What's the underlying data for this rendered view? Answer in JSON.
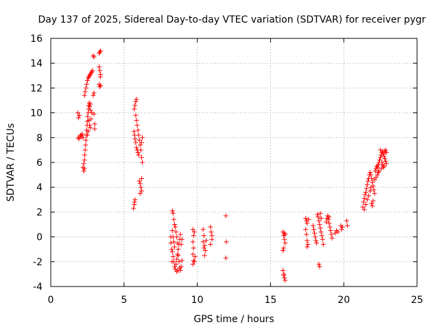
{
  "chart_data": {
    "type": "scatter",
    "title": "Day 137 of 2025, Sidereal Day-to-day VTEC variation (SDTVAR) for receiver pygr",
    "xlabel": "GPS time / hours",
    "ylabel": "SDTVAR / TECUs",
    "xlim": [
      0,
      25
    ],
    "ylim": [
      -4,
      16
    ],
    "xticks": [
      0,
      5,
      10,
      15,
      20,
      25
    ],
    "yticks": [
      -4,
      -2,
      0,
      2,
      4,
      6,
      8,
      10,
      12,
      14,
      16
    ],
    "grid": true,
    "marker": "+",
    "color": "#ff0000",
    "series": [
      {
        "name": "SDTVAR",
        "points": [
          [
            1.85,
            10.0
          ],
          [
            1.9,
            9.6
          ],
          [
            1.95,
            9.8
          ],
          [
            1.88,
            8.0
          ],
          [
            1.92,
            7.9
          ],
          [
            2.0,
            8.1
          ],
          [
            2.05,
            8.2
          ],
          [
            2.1,
            8.1
          ],
          [
            2.15,
            8.3
          ],
          [
            2.2,
            8.0
          ],
          [
            2.2,
            5.6
          ],
          [
            2.25,
            5.3
          ],
          [
            2.3,
            5.5
          ],
          [
            2.25,
            5.9
          ],
          [
            2.3,
            6.2
          ],
          [
            2.32,
            6.6
          ],
          [
            2.35,
            7.0
          ],
          [
            2.38,
            7.4
          ],
          [
            2.4,
            7.8
          ],
          [
            2.42,
            8.2
          ],
          [
            2.45,
            8.6
          ],
          [
            2.48,
            9.0
          ],
          [
            2.5,
            9.3
          ],
          [
            2.52,
            9.7
          ],
          [
            2.55,
            10.0
          ],
          [
            2.58,
            10.3
          ],
          [
            2.6,
            10.6
          ],
          [
            2.62,
            10.8
          ],
          [
            2.65,
            10.5
          ],
          [
            2.7,
            10.7
          ],
          [
            2.3,
            11.4
          ],
          [
            2.35,
            11.7
          ],
          [
            2.4,
            12.0
          ],
          [
            2.45,
            12.3
          ],
          [
            2.5,
            12.6
          ],
          [
            2.55,
            12.8
          ],
          [
            2.6,
            12.9
          ],
          [
            2.65,
            13.0
          ],
          [
            2.7,
            13.1
          ],
          [
            2.75,
            13.2
          ],
          [
            2.8,
            13.3
          ],
          [
            2.85,
            13.4
          ],
          [
            2.6,
            9.4
          ],
          [
            2.65,
            9.0
          ],
          [
            2.55,
            8.5
          ],
          [
            2.5,
            8.2
          ],
          [
            2.7,
            8.8
          ],
          [
            2.75,
            9.5
          ],
          [
            2.8,
            10.0
          ],
          [
            2.72,
            10.2
          ],
          [
            2.9,
            14.6
          ],
          [
            2.95,
            14.5
          ],
          [
            2.95,
            11.6
          ],
          [
            2.9,
            11.4
          ],
          [
            2.95,
            9.9
          ],
          [
            3.0,
            9.1
          ],
          [
            3.0,
            8.7
          ],
          [
            3.3,
            14.8
          ],
          [
            3.35,
            14.9
          ],
          [
            3.4,
            15.0
          ],
          [
            3.3,
            13.7
          ],
          [
            3.35,
            13.4
          ],
          [
            3.4,
            13.1
          ],
          [
            3.3,
            12.3
          ],
          [
            3.35,
            12.1
          ],
          [
            3.4,
            12.2
          ],
          [
            3.38,
            12.9
          ],
          [
            5.65,
            2.3
          ],
          [
            5.7,
            2.6
          ],
          [
            5.72,
            2.8
          ],
          [
            5.75,
            3.0
          ],
          [
            5.68,
            8.5
          ],
          [
            5.72,
            8.2
          ],
          [
            5.75,
            7.9
          ],
          [
            5.8,
            7.6
          ],
          [
            5.85,
            7.2
          ],
          [
            5.9,
            7.0
          ],
          [
            5.95,
            6.8
          ],
          [
            6.0,
            6.6
          ],
          [
            5.7,
            10.3
          ],
          [
            5.75,
            10.6
          ],
          [
            5.8,
            10.9
          ],
          [
            5.85,
            11.1
          ],
          [
            5.8,
            9.8
          ],
          [
            5.85,
            9.4
          ],
          [
            5.9,
            9.0
          ],
          [
            5.95,
            8.6
          ],
          [
            6.0,
            8.2
          ],
          [
            6.05,
            7.8
          ],
          [
            6.1,
            7.4
          ],
          [
            6.15,
            7.0
          ],
          [
            6.2,
            6.4
          ],
          [
            6.25,
            6.0
          ],
          [
            6.05,
            4.5
          ],
          [
            6.1,
            4.3
          ],
          [
            6.15,
            4.0
          ],
          [
            6.2,
            3.7
          ],
          [
            6.1,
            3.5
          ],
          [
            6.2,
            4.7
          ],
          [
            6.25,
            8.0
          ],
          [
            6.2,
            7.6
          ],
          [
            8.3,
            2.1
          ],
          [
            8.35,
            1.9
          ],
          [
            8.4,
            1.4
          ],
          [
            8.45,
            1.0
          ],
          [
            8.3,
            0.5
          ],
          [
            8.35,
            0.0
          ],
          [
            8.4,
            -0.4
          ],
          [
            8.45,
            -0.8
          ],
          [
            8.3,
            -1.2
          ],
          [
            8.35,
            -1.6
          ],
          [
            8.4,
            -2.0
          ],
          [
            8.45,
            -2.4
          ],
          [
            8.5,
            -2.6
          ],
          [
            8.55,
            -2.2
          ],
          [
            8.6,
            -1.8
          ],
          [
            8.65,
            -1.4
          ],
          [
            8.7,
            -1.0
          ],
          [
            8.75,
            -0.6
          ],
          [
            8.8,
            -0.2
          ],
          [
            8.85,
            0.2
          ],
          [
            8.5,
            0.8
          ],
          [
            8.55,
            0.4
          ],
          [
            8.6,
            0.0
          ],
          [
            8.65,
            -0.5
          ],
          [
            8.7,
            -1.5
          ],
          [
            8.75,
            -2.0
          ],
          [
            8.8,
            -2.5
          ],
          [
            8.85,
            -2.7
          ],
          [
            8.9,
            -2.4
          ],
          [
            8.95,
            -1.9
          ],
          [
            8.9,
            -0.6
          ],
          [
            8.95,
            -0.2
          ],
          [
            8.6,
            -2.8
          ],
          [
            8.7,
            -2.7
          ],
          [
            8.2,
            -0.5
          ],
          [
            8.25,
            -1.0
          ],
          [
            8.2,
            0.0
          ],
          [
            8.28,
            -2.0
          ],
          [
            9.7,
            0.6
          ],
          [
            9.75,
            0.1
          ],
          [
            9.7,
            -0.4
          ],
          [
            9.75,
            -0.9
          ],
          [
            9.7,
            -1.4
          ],
          [
            9.75,
            -1.9
          ],
          [
            9.7,
            -2.2
          ],
          [
            9.8,
            -2.0
          ],
          [
            9.8,
            0.4
          ],
          [
            9.85,
            -1.6
          ],
          [
            10.4,
            0.6
          ],
          [
            10.45,
            0.1
          ],
          [
            10.4,
            -0.4
          ],
          [
            10.45,
            -0.9
          ],
          [
            10.5,
            -0.7
          ],
          [
            10.55,
            -1.1
          ],
          [
            10.6,
            -0.3
          ],
          [
            10.5,
            -1.5
          ],
          [
            10.9,
            0.8
          ],
          [
            10.95,
            0.4
          ],
          [
            11.0,
            -0.2
          ],
          [
            10.9,
            -0.6
          ],
          [
            11.0,
            0.1
          ],
          [
            11.95,
            1.7
          ],
          [
            11.98,
            -0.4
          ],
          [
            11.95,
            -1.7
          ],
          [
            15.85,
            0.4
          ],
          [
            15.9,
            0.1
          ],
          [
            15.95,
            -0.2
          ],
          [
            16.0,
            -0.5
          ],
          [
            15.9,
            -0.9
          ],
          [
            15.85,
            -1.1
          ],
          [
            16.0,
            0.2
          ],
          [
            15.95,
            0.3
          ],
          [
            15.85,
            -2.7
          ],
          [
            15.9,
            -3.1
          ],
          [
            15.95,
            -3.3
          ],
          [
            16.0,
            -3.5
          ],
          [
            15.92,
            -3.0
          ],
          [
            17.4,
            1.5
          ],
          [
            17.45,
            1.3
          ],
          [
            17.5,
            1.1
          ],
          [
            17.4,
            0.6
          ],
          [
            17.45,
            0.2
          ],
          [
            17.5,
            -0.3
          ],
          [
            17.55,
            -0.6
          ],
          [
            17.6,
            1.4
          ],
          [
            17.5,
            -0.8
          ],
          [
            17.9,
            0.9
          ],
          [
            17.95,
            0.6
          ],
          [
            18.0,
            0.3
          ],
          [
            18.05,
            0.0
          ],
          [
            18.1,
            -0.3
          ],
          [
            18.15,
            -0.5
          ],
          [
            18.2,
            1.8
          ],
          [
            18.25,
            1.6
          ],
          [
            18.3,
            1.3
          ],
          [
            18.35,
            1.0
          ],
          [
            18.4,
            0.7
          ],
          [
            18.45,
            0.4
          ],
          [
            18.5,
            0.1
          ],
          [
            18.55,
            -0.2
          ],
          [
            18.6,
            -0.6
          ],
          [
            18.3,
            -2.2
          ],
          [
            18.35,
            -2.4
          ],
          [
            18.4,
            1.9
          ],
          [
            18.45,
            1.5
          ],
          [
            18.8,
            1.2
          ],
          [
            18.85,
            1.5
          ],
          [
            18.9,
            1.7
          ],
          [
            18.95,
            1.4
          ],
          [
            19.0,
            1.1
          ],
          [
            19.05,
            0.8
          ],
          [
            19.1,
            0.5
          ],
          [
            19.15,
            0.2
          ],
          [
            19.2,
            -0.1
          ],
          [
            19.0,
            1.6
          ],
          [
            19.4,
            0.3
          ],
          [
            19.5,
            0.5
          ],
          [
            19.6,
            0.4
          ],
          [
            19.8,
            0.9
          ],
          [
            19.85,
            0.6
          ],
          [
            19.9,
            0.8
          ],
          [
            20.2,
            1.3
          ],
          [
            20.25,
            0.9
          ],
          [
            21.3,
            2.4
          ],
          [
            21.35,
            2.8
          ],
          [
            21.4,
            3.1
          ],
          [
            21.45,
            3.4
          ],
          [
            21.5,
            3.6
          ],
          [
            21.55,
            3.9
          ],
          [
            21.6,
            4.2
          ],
          [
            21.65,
            4.5
          ],
          [
            21.7,
            4.7
          ],
          [
            21.75,
            5.0
          ],
          [
            21.8,
            5.2
          ],
          [
            21.85,
            5.0
          ],
          [
            21.9,
            4.7
          ],
          [
            21.95,
            4.4
          ],
          [
            22.0,
            4.1
          ],
          [
            22.05,
            3.8
          ],
          [
            22.1,
            3.5
          ],
          [
            21.9,
            2.7
          ],
          [
            21.95,
            2.5
          ],
          [
            22.0,
            2.9
          ],
          [
            21.4,
            2.2
          ],
          [
            21.5,
            2.6
          ],
          [
            21.6,
            3.0
          ],
          [
            21.7,
            3.3
          ],
          [
            21.8,
            3.7
          ],
          [
            21.85,
            4.0
          ],
          [
            22.15,
            5.3
          ],
          [
            22.2,
            5.5
          ],
          [
            22.25,
            5.7
          ],
          [
            22.3,
            5.6
          ],
          [
            22.35,
            5.8
          ],
          [
            22.4,
            6.0
          ],
          [
            22.45,
            6.2
          ],
          [
            22.5,
            6.4
          ],
          [
            22.55,
            6.6
          ],
          [
            22.6,
            6.8
          ],
          [
            22.65,
            6.9
          ],
          [
            22.7,
            6.7
          ],
          [
            22.75,
            6.5
          ],
          [
            22.8,
            6.3
          ],
          [
            22.85,
            6.1
          ],
          [
            22.9,
            5.9
          ],
          [
            22.6,
            6.0
          ],
          [
            22.65,
            5.8
          ],
          [
            22.7,
            5.6
          ],
          [
            22.75,
            5.7
          ],
          [
            22.8,
            6.9
          ],
          [
            22.85,
            7.0
          ],
          [
            22.9,
            6.8
          ],
          [
            22.5,
            7.0
          ],
          [
            22.55,
            5.5
          ],
          [
            22.4,
            5.3
          ],
          [
            22.35,
            5.2
          ],
          [
            22.3,
            5.0
          ],
          [
            22.2,
            4.8
          ],
          [
            22.1,
            4.6
          ]
        ]
      }
    ]
  }
}
